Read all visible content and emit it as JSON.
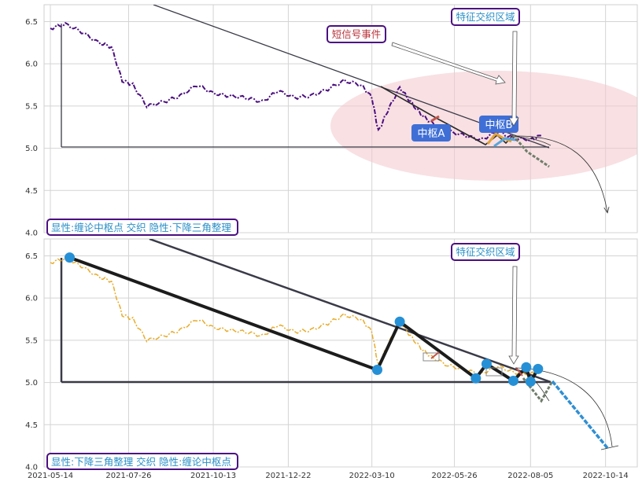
{
  "colors": {
    "price_top": "#4b0f80",
    "price_bottom": "#e8ac2a",
    "zone_ellipse": "#f2c6cc",
    "label_border": "#4b0f80",
    "label_text": "#2a8fc7",
    "signal_text": "#b8323a",
    "pivot_fill": "#3f6fd6",
    "node_fill": "#2690d6",
    "zigzag": "#1c1c1c",
    "triangle_line": "#3a3a48"
  },
  "chart_data": [
    {
      "type": "line",
      "panel": "top",
      "x_dates": [
        "2021-05-14",
        "2021-05-28",
        "2021-06-12",
        "2021-06-28",
        "2021-07-10",
        "2021-07-20",
        "2021-07-30",
        "2021-08-12",
        "2021-08-28",
        "2021-09-12",
        "2021-09-28",
        "2021-10-13",
        "2021-10-28",
        "2021-11-12",
        "2021-11-28",
        "2021-12-12",
        "2021-12-28",
        "2022-01-12",
        "2022-01-28",
        "2022-02-12",
        "2022-02-28",
        "2022-03-10",
        "2022-03-16",
        "2022-03-25",
        "2022-04-05",
        "2022-04-15",
        "2022-04-25",
        "2022-05-05",
        "2022-05-20",
        "2022-06-05",
        "2022-06-20",
        "2022-07-05",
        "2022-07-20",
        "2022-08-05",
        "2022-08-15"
      ],
      "y_values": [
        6.42,
        6.47,
        6.38,
        6.25,
        6.2,
        5.8,
        5.75,
        5.5,
        5.55,
        5.62,
        5.75,
        5.65,
        5.62,
        5.6,
        5.55,
        5.68,
        5.6,
        5.62,
        5.7,
        5.8,
        5.75,
        5.6,
        5.2,
        5.45,
        5.72,
        5.55,
        5.4,
        5.3,
        5.2,
        5.15,
        5.1,
        5.2,
        5.12,
        5.1,
        5.15
      ],
      "ylim": [
        4.0,
        6.7
      ],
      "y_ticks": [
        "4.0",
        "4.5",
        "5.0",
        "5.5",
        "6.0",
        "6.5"
      ],
      "annotations": {
        "label": "显性:缠论中枢点 交织 隐性:下降三角整理",
        "feature_zone": "特征交织区域",
        "short_signal": "短信号事件",
        "pivot_a": "中枢A",
        "pivot_b": "中枢B"
      }
    },
    {
      "type": "line",
      "panel": "bottom",
      "x_ticks": [
        "2021-05-14",
        "2021-07-26",
        "2021-10-13",
        "2021-12-22",
        "2022-03-10",
        "2022-05-26",
        "2022-08-05",
        "2022-10-14"
      ],
      "zigzag_points": [
        {
          "x": "2021-06-01",
          "y": 6.48
        },
        {
          "x": "2022-03-15",
          "y": 5.15
        },
        {
          "x": "2022-04-05",
          "y": 5.72
        },
        {
          "x": "2022-06-15",
          "y": 5.05
        },
        {
          "x": "2022-06-25",
          "y": 5.22
        },
        {
          "x": "2022-07-20",
          "y": 5.02
        },
        {
          "x": "2022-08-01",
          "y": 5.18
        },
        {
          "x": "2022-08-05",
          "y": 5.01
        },
        {
          "x": "2022-08-12",
          "y": 5.16
        }
      ],
      "ylim": [
        4.0,
        6.7
      ],
      "y_ticks": [
        "4.0",
        "4.5",
        "5.0",
        "5.5",
        "6.0",
        "6.5"
      ],
      "annotations": {
        "label": "显性:下降三角整理 交织 隐性:缠论中枢点",
        "feature_zone": "特征交织区域"
      }
    }
  ]
}
